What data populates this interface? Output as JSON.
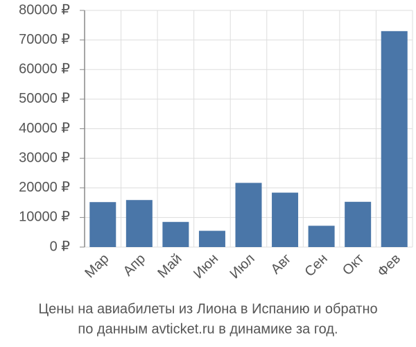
{
  "chart_data": {
    "type": "bar",
    "title": [
      "Цены на авиабилеты из Лиона в Испанию и обратно",
      "по данным avticket.ru в динамике за год."
    ],
    "categories": [
      "Мар",
      "Апр",
      "Май",
      "Июн",
      "Июл",
      "Авг",
      "Сен",
      "Окт",
      "Фев"
    ],
    "values": [
      15200,
      15900,
      8500,
      5500,
      21700,
      18400,
      7200,
      15300,
      73000
    ],
    "color": "#4a76a8",
    "ylim": [
      0,
      80000
    ],
    "yticks": [
      {
        "value": 0,
        "label": "0 ₽"
      },
      {
        "value": 10000,
        "label": "10000 ₽"
      },
      {
        "value": 20000,
        "label": "20000 ₽"
      },
      {
        "value": 30000,
        "label": "30000 ₽"
      },
      {
        "value": 40000,
        "label": "40000 ₽"
      },
      {
        "value": 50000,
        "label": "50000 ₽"
      },
      {
        "value": 60000,
        "label": "60000 ₽"
      },
      {
        "value": 70000,
        "label": "70000 ₽"
      },
      {
        "value": 80000,
        "label": "80000 ₽"
      }
    ],
    "grid": true
  }
}
